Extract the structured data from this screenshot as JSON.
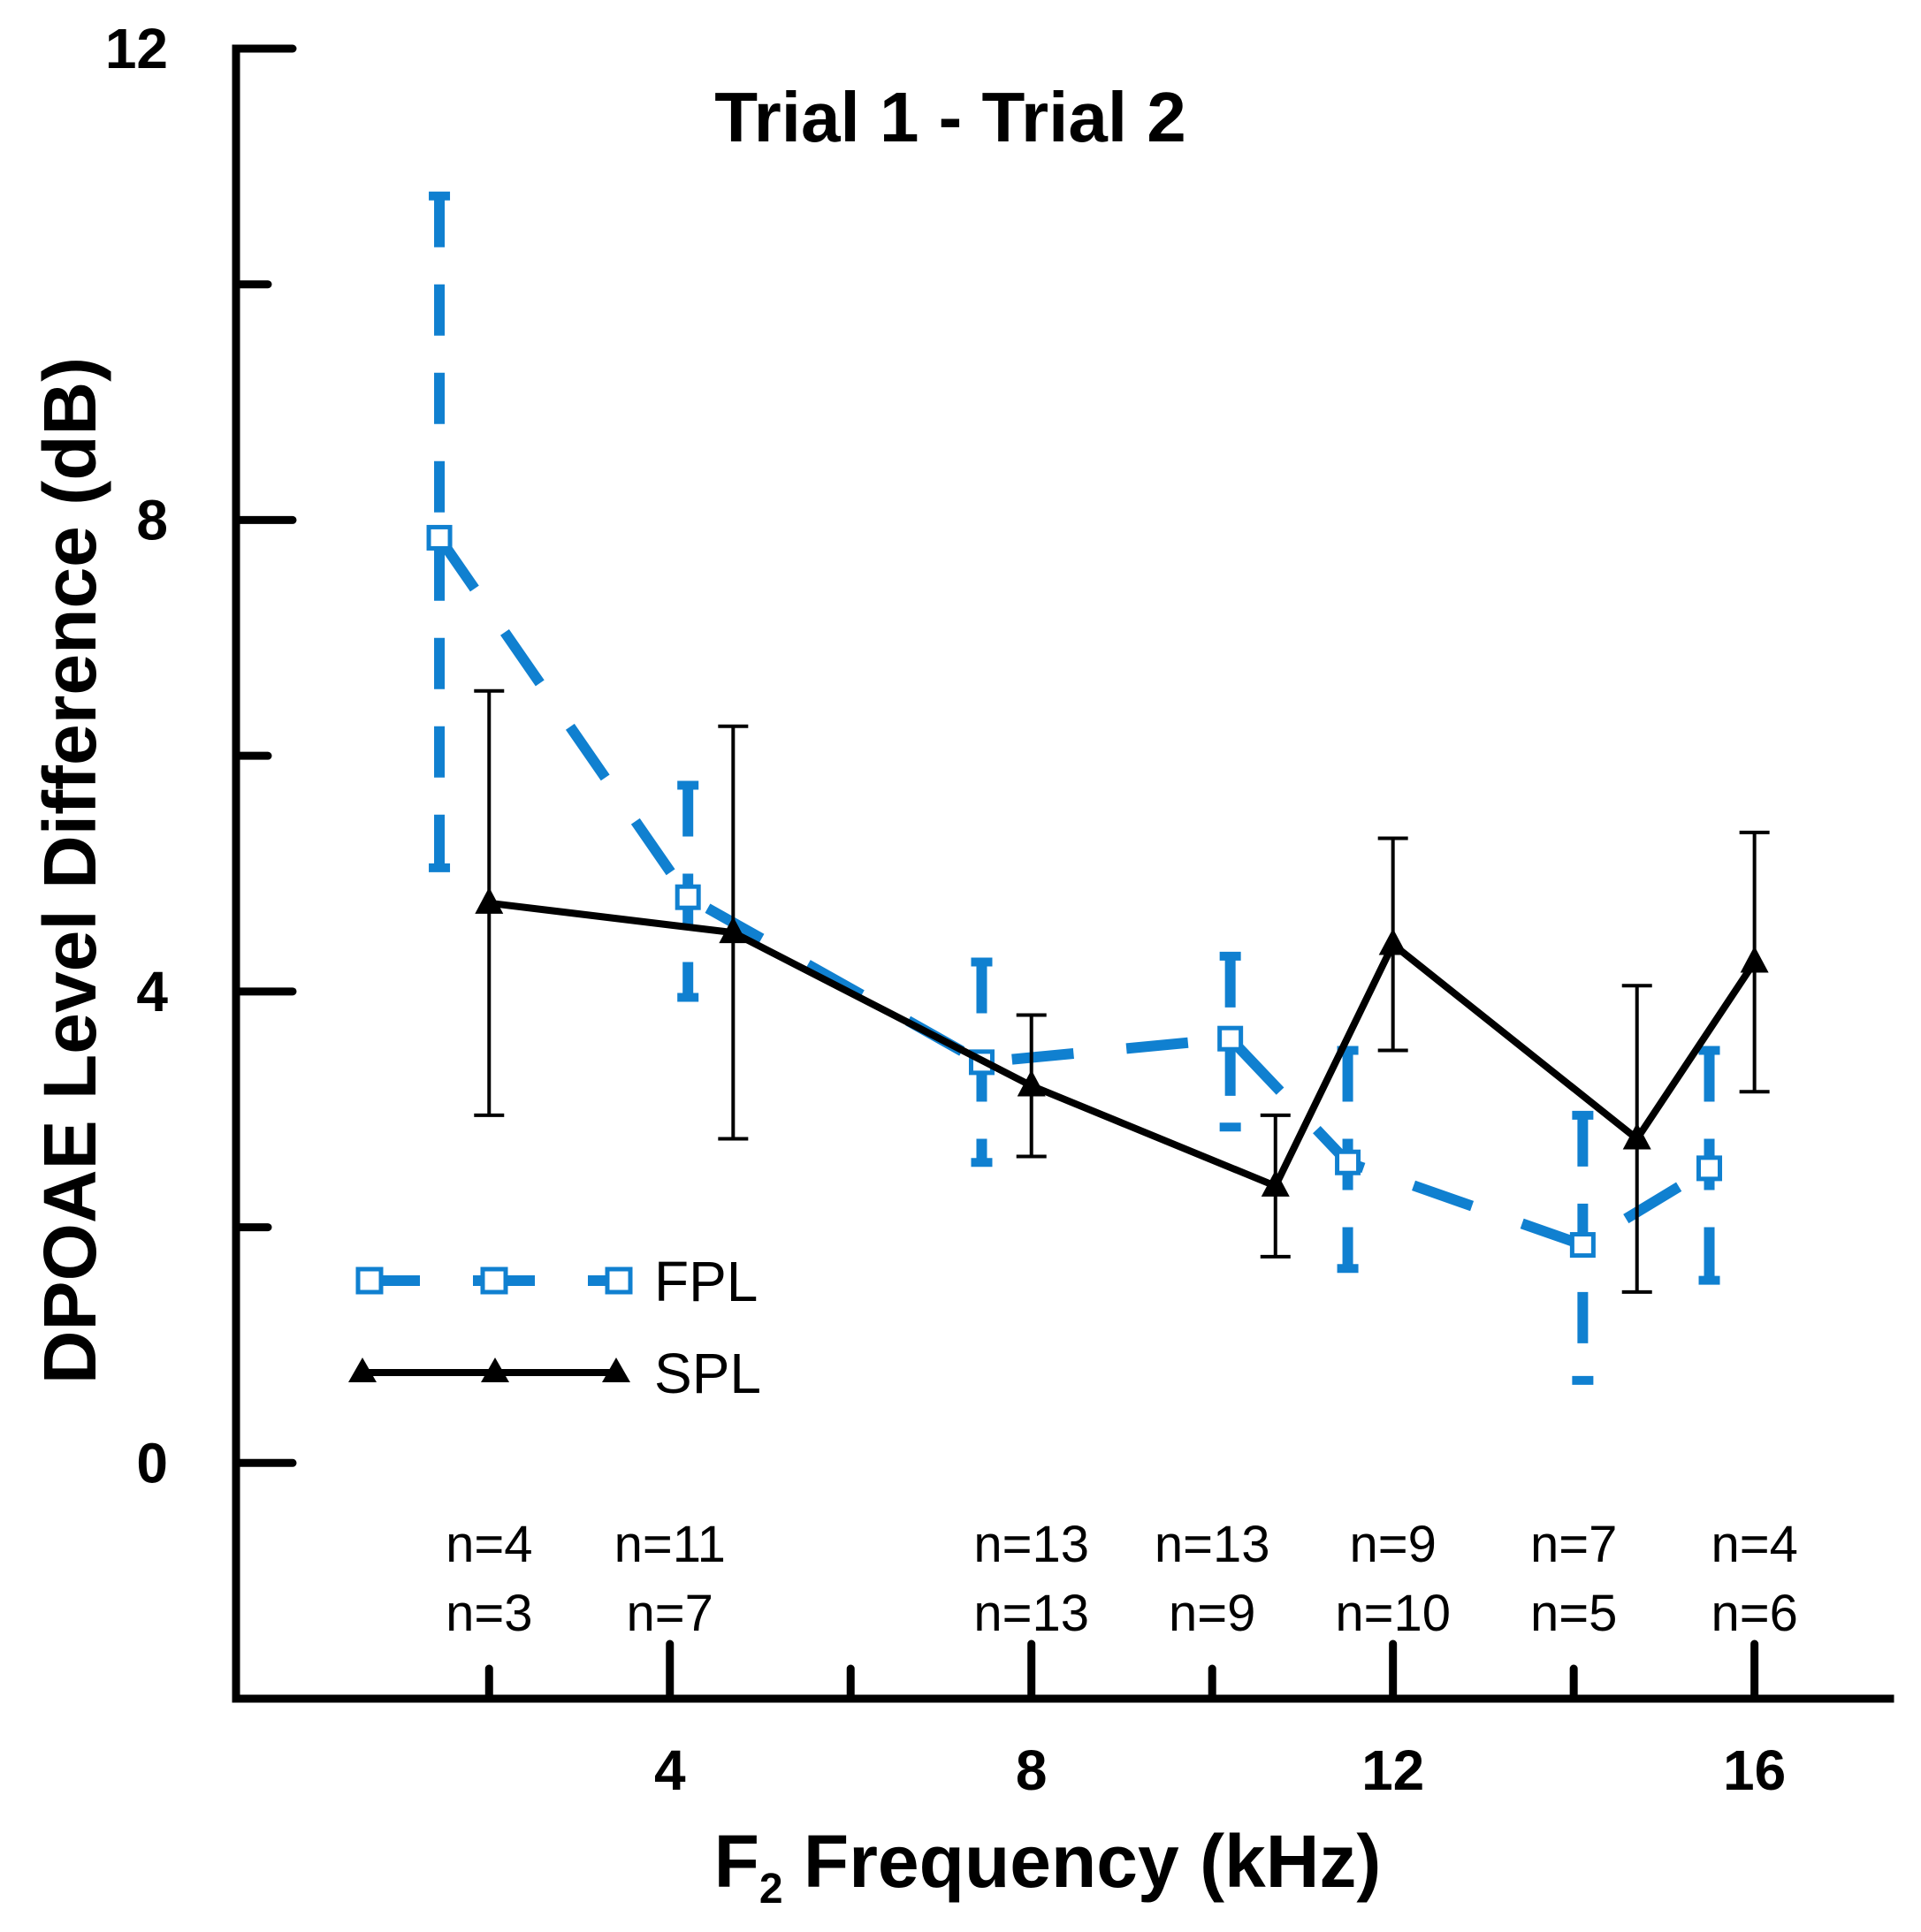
{
  "chart_data": {
    "type": "line",
    "title": "Trial 1 - Trial 2",
    "xlabel_main": "F",
    "xlabel_sub": "2",
    "xlabel_rest": " Frequency (kHz)",
    "ylabel": "DPOAE Level Difference (dB)",
    "xlim": [
      -0.8,
      17.5
    ],
    "ylim": [
      -2.0,
      12
    ],
    "x_major_ticks": [
      4,
      8,
      12,
      16
    ],
    "x_minor_ticks": [
      2,
      6,
      10,
      14
    ],
    "x_tick_labels": [
      "4",
      "8",
      "12",
      "16"
    ],
    "y_major_ticks": [
      0,
      4,
      8,
      12
    ],
    "y_minor_ticks": [
      2,
      6,
      10
    ],
    "y_tick_labels": [
      "0",
      "4",
      "8",
      "12"
    ],
    "series": [
      {
        "name": "FPL",
        "color": "#1080d0",
        "style": "dashed",
        "marker": "open-square",
        "x": [
          1.45,
          4.2,
          7.45,
          10.2,
          11.5,
          14.1,
          15.5
        ],
        "y": [
          7.85,
          4.8,
          3.4,
          3.6,
          2.55,
          1.85,
          2.5
        ],
        "err_low": [
          5.05,
          3.95,
          2.55,
          2.85,
          1.65,
          0.7,
          1.55
        ],
        "err_high": [
          10.75,
          5.75,
          4.25,
          4.3,
          3.5,
          2.95,
          3.5
        ]
      },
      {
        "name": "SPL",
        "color": "#000000",
        "style": "solid",
        "marker": "filled-triangle",
        "x": [
          2.0,
          4.7,
          8.0,
          10.7,
          12.0,
          14.7,
          16.0
        ],
        "y": [
          4.75,
          4.5,
          3.2,
          2.35,
          4.4,
          2.75,
          4.25
        ],
        "err_low": [
          2.95,
          2.75,
          2.6,
          1.75,
          3.5,
          1.45,
          3.15
        ],
        "err_high": [
          6.55,
          6.25,
          3.8,
          2.95,
          5.3,
          4.05,
          5.35
        ]
      }
    ],
    "n_labels": [
      {
        "x": 2.0,
        "top": "n=4",
        "bottom": "n=3"
      },
      {
        "x": 4.0,
        "top": "n=11",
        "bottom": "n=7"
      },
      {
        "x": 8.0,
        "top": "n=13",
        "bottom": "n=13"
      },
      {
        "x": 10.0,
        "top": "n=13",
        "bottom": "n=9"
      },
      {
        "x": 12.0,
        "top": "n=9",
        "bottom": "n=10"
      },
      {
        "x": 14.0,
        "top": "n=7",
        "bottom": "n=5"
      },
      {
        "x": 16.0,
        "top": "n=4",
        "bottom": "n=6"
      }
    ],
    "legend": {
      "position": "lower-left",
      "entries": [
        "FPL",
        "SPL"
      ]
    }
  }
}
